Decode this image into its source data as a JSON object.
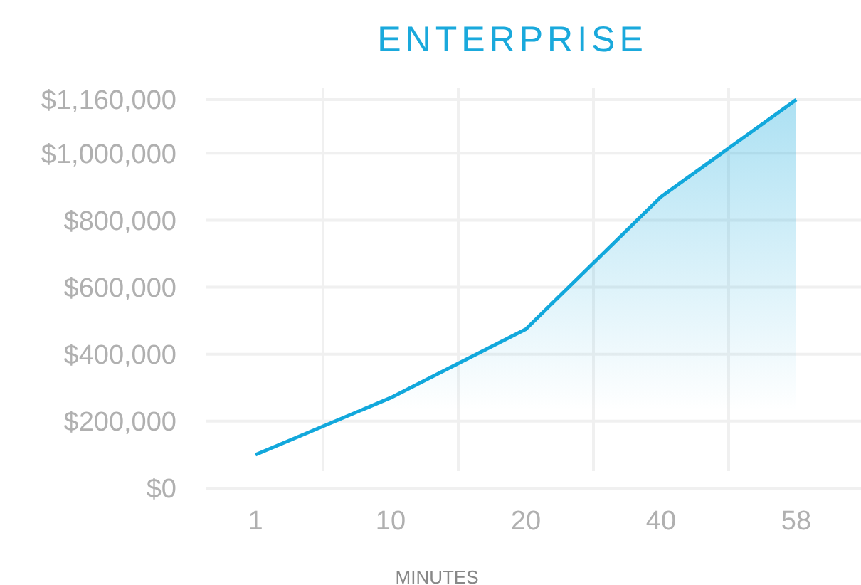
{
  "chart_data": {
    "type": "area",
    "title": "ENTERPRISE",
    "xlabel": "MINUTES",
    "categories": [
      "1",
      "10",
      "20",
      "40",
      "58"
    ],
    "series": [
      {
        "color": "#12a8dc",
        "values": [
          100000,
          270000,
          475000,
          870000,
          1160000
        ]
      }
    ],
    "ylim": [
      0,
      1160000
    ],
    "yticks": [
      {
        "value": 0,
        "label": "$0"
      },
      {
        "value": 200000,
        "label": "$200,000"
      },
      {
        "value": 400000,
        "label": "$400,000"
      },
      {
        "value": 600000,
        "label": "$600,000"
      },
      {
        "value": 800000,
        "label": "$800,000"
      },
      {
        "value": 1000000,
        "label": "$1,000,000"
      },
      {
        "value": 1160000,
        "label": "$1,160,000"
      }
    ],
    "grid": true
  }
}
